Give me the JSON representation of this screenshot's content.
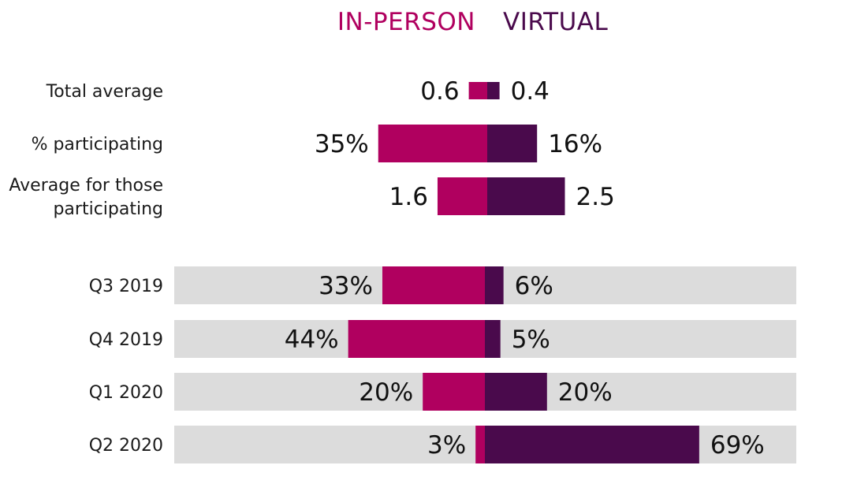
{
  "chart_data": {
    "type": "bar",
    "orientation": "diverging-horizontal",
    "legend": {
      "position": "top",
      "items": [
        {
          "name": "IN-PERSON",
          "color": "#b0005f"
        },
        {
          "name": "VIRTUAL",
          "color": "#4a0a4c"
        }
      ]
    },
    "background_track_color": "#dcdcdc",
    "groups": [
      {
        "rows": [
          {
            "label_lines": [
              "Total average"
            ],
            "left": 0.6,
            "right": 0.4,
            "left_label": "0.6",
            "right_label": "0.4"
          },
          {
            "label_lines": [
              "% participating"
            ],
            "left": 35,
            "right": 16,
            "left_label": "35%",
            "right_label": "16%"
          },
          {
            "label_lines": [
              "Average for those",
              "participating"
            ],
            "left": 1.6,
            "right": 2.5,
            "left_label": "1.6",
            "right_label": "2.5"
          }
        ]
      },
      {
        "background_track": true,
        "rows": [
          {
            "label_lines": [
              "Q3 2019"
            ],
            "left": 33,
            "right": 6,
            "left_label": "33%",
            "right_label": "6%"
          },
          {
            "label_lines": [
              "Q4 2019"
            ],
            "left": 44,
            "right": 5,
            "left_label": "44%",
            "right_label": "5%"
          },
          {
            "label_lines": [
              "Q1 2020"
            ],
            "left": 20,
            "right": 20,
            "left_label": "20%",
            "right_label": "20%"
          },
          {
            "label_lines": [
              "Q2 2020"
            ],
            "left": 3,
            "right": 69,
            "left_label": "3%",
            "right_label": "69%"
          }
        ]
      }
    ]
  }
}
